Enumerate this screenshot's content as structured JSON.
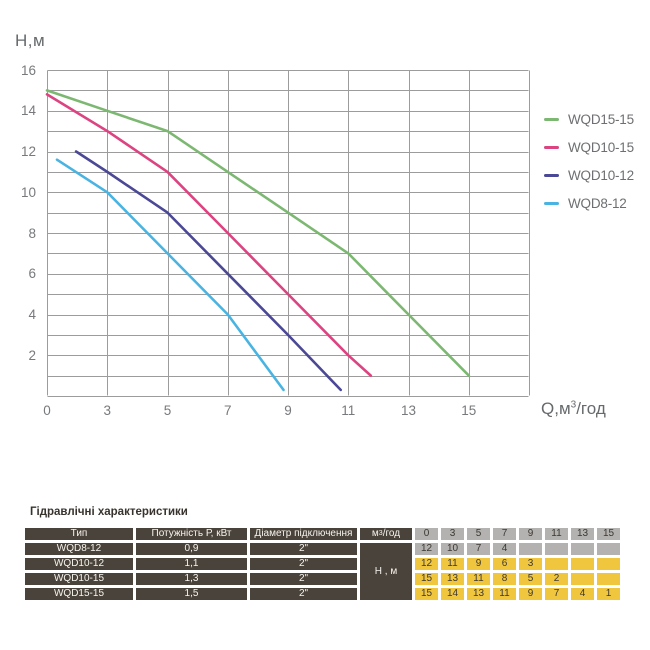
{
  "chart": {
    "y_axis_label": "Н,м",
    "x_axis_label": {
      "prefix": "Q,м",
      "sup": "3",
      "suffix": "/год"
    },
    "y_ticks": [
      "16",
      "14",
      "12",
      "10",
      "8",
      "6",
      "4",
      "2"
    ],
    "x_ticks": [
      "0",
      "3",
      "5",
      "7",
      "9",
      "11",
      "13",
      "15"
    ],
    "grid_color": "#9c9c9c",
    "tick_color": "#77797c"
  },
  "chart_data": {
    "type": "line",
    "title": "",
    "xlabel": "Q,м3/год",
    "ylabel": "Н,м",
    "x_tick_values": [
      0,
      3,
      5,
      7,
      9,
      11,
      13,
      15
    ],
    "ylim": [
      0,
      16
    ],
    "y_grid_step": 1,
    "grid": true,
    "legend_position": "right",
    "x_axis_note": "ticks 0,3,5,7,9,11,13,15 are equally spaced",
    "series": [
      {
        "name": "WQD15-15",
        "color": "#7cb871",
        "points": [
          [
            0,
            15
          ],
          [
            3,
            14
          ],
          [
            5,
            13
          ],
          [
            7,
            11
          ],
          [
            9,
            9
          ],
          [
            11,
            7
          ],
          [
            13,
            4
          ],
          [
            15,
            1
          ]
        ]
      },
      {
        "name": "WQD10-15",
        "color": "#dc4481",
        "points": [
          [
            0,
            14.8
          ],
          [
            3,
            13
          ],
          [
            5,
            11
          ],
          [
            7,
            8
          ],
          [
            9,
            5
          ],
          [
            11,
            2
          ],
          [
            11.75,
            1
          ]
        ]
      },
      {
        "name": "WQD10-12",
        "color": "#4b4896",
        "points": [
          [
            1.45,
            12
          ],
          [
            3,
            11
          ],
          [
            5,
            9
          ],
          [
            7,
            6
          ],
          [
            9,
            3
          ],
          [
            10.75,
            0.3
          ]
        ]
      },
      {
        "name": "WQD8-12",
        "color": "#49b4e2",
        "points": [
          [
            0.5,
            11.6
          ],
          [
            3,
            10
          ],
          [
            5,
            7
          ],
          [
            7,
            4
          ],
          [
            8.85,
            0.3
          ]
        ]
      }
    ]
  },
  "table": {
    "title": "Гідравлічні характеристики",
    "col_type": "Тип",
    "col_power": "Потужність Р, кВт",
    "col_diameter": "Діаметр підключення",
    "flow_header": {
      "prefix": "м",
      "sup": "3",
      "suffix": "/год"
    },
    "h_cell": "Н , м",
    "q_columns": [
      "0",
      "3",
      "5",
      "7",
      "9",
      "11",
      "13",
      "15"
    ],
    "rows": [
      {
        "type": "WQD8-12",
        "power": "0,9",
        "diameter": "2\"",
        "tone": "gray",
        "h": [
          "12",
          "10",
          "7",
          "4",
          "",
          "",
          "",
          ""
        ]
      },
      {
        "type": "WQD10-12",
        "power": "1,1",
        "diameter": "2\"",
        "tone": "yellow",
        "h": [
          "12",
          "11",
          "9",
          "6",
          "3",
          "",
          "",
          ""
        ]
      },
      {
        "type": "WQD10-15",
        "power": "1,3",
        "diameter": "2\"",
        "tone": "yellow",
        "h": [
          "15",
          "13",
          "11",
          "8",
          "5",
          "2",
          "",
          ""
        ]
      },
      {
        "type": "WQD15-15",
        "power": "1,5",
        "diameter": "2\"",
        "tone": "yellow",
        "h": [
          "15",
          "14",
          "13",
          "11",
          "9",
          "7",
          "4",
          "1"
        ]
      }
    ],
    "colors": {
      "dark_cell": "#4a433b",
      "gray_cell": "#b3b2b0",
      "yellow_cell": "#f1c63f"
    }
  }
}
